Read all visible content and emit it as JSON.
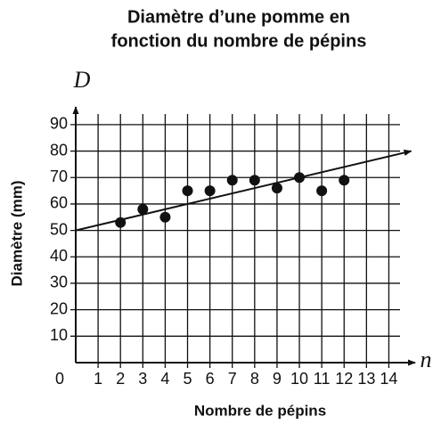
{
  "chart_data": {
    "type": "scatter",
    "title": [
      "Diamètre d’une pomme en",
      "fonction du nombre de pépins"
    ],
    "x_label": "Nombre de pépins",
    "y_label": "Diamètre (mm)",
    "x_var": "n",
    "y_var": "D",
    "x": [
      2,
      3,
      4,
      5,
      6,
      7,
      8,
      9,
      10,
      11,
      12
    ],
    "values": [
      53,
      58,
      55,
      65,
      65,
      69,
      69,
      66,
      70,
      65,
      69
    ],
    "color": "#111111",
    "trend_line": {
      "x": [
        0,
        15
      ],
      "y": [
        50,
        80
      ]
    },
    "xlim": [
      0,
      14.5
    ],
    "ylim": [
      0,
      94
    ],
    "xticks": [
      1,
      2,
      3,
      4,
      5,
      6,
      7,
      8,
      9,
      10,
      11,
      12,
      13,
      14
    ],
    "yticks": [
      0,
      10,
      20,
      30,
      40,
      50,
      60,
      70,
      80,
      90
    ],
    "grid": true
  }
}
